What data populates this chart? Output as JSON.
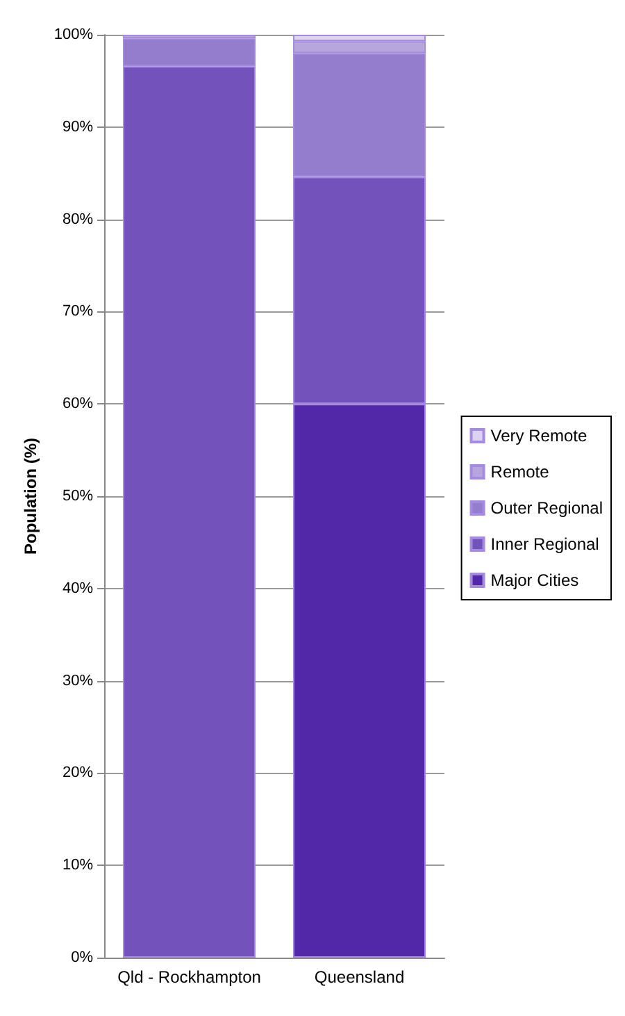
{
  "chart_data": {
    "type": "bar",
    "stacked": true,
    "ylabel": "Population (%)",
    "categories": [
      "Qld - Rockhampton",
      "Queensland"
    ],
    "series": [
      {
        "name": "Major Cities",
        "color": "#5227a8",
        "values": [
          0,
          60.0
        ]
      },
      {
        "name": "Inner Regional",
        "color": "#7352bb",
        "values": [
          96.6,
          24.6
        ]
      },
      {
        "name": "Outer Regional",
        "color": "#947dcc",
        "values": [
          3.0,
          13.4
        ]
      },
      {
        "name": "Remote",
        "color": "#b7a6de",
        "values": [
          0.4,
          1.3
        ]
      },
      {
        "name": "Very Remote",
        "color": "#dcd3f0",
        "values": [
          0,
          0.7
        ]
      }
    ],
    "ylim": [
      0,
      100
    ],
    "yticks": [
      {
        "value": 0,
        "label": "0%"
      },
      {
        "value": 10,
        "label": "10%"
      },
      {
        "value": 20,
        "label": "20%"
      },
      {
        "value": 30,
        "label": "30%"
      },
      {
        "value": 40,
        "label": "40%"
      },
      {
        "value": 50,
        "label": "50%"
      },
      {
        "value": 60,
        "label": "60%"
      },
      {
        "value": 70,
        "label": "70%"
      },
      {
        "value": 80,
        "label": "80%"
      },
      {
        "value": 90,
        "label": "90%"
      },
      {
        "value": 100,
        "label": "100%"
      }
    ],
    "grid": "y",
    "legend": "right"
  }
}
